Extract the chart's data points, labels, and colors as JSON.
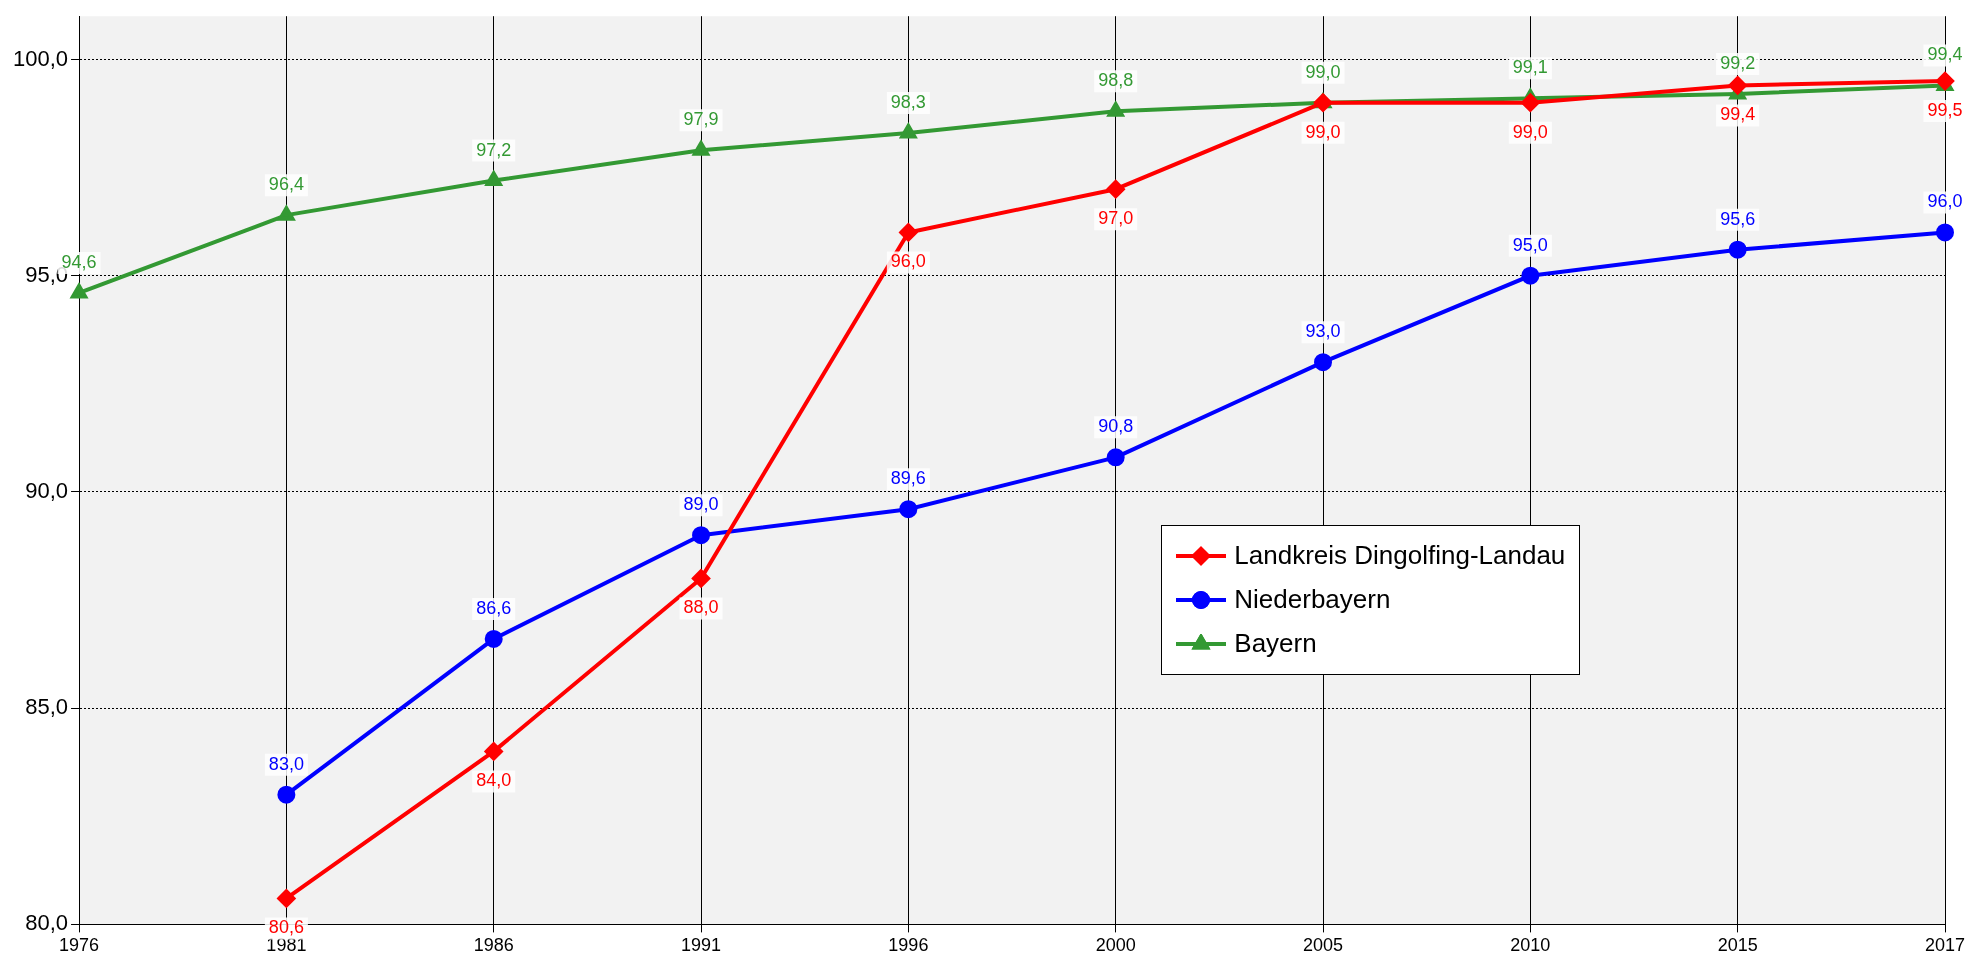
{
  "chart_data": {
    "type": "line",
    "categories": [
      "1976",
      "1981",
      "1986",
      "1991",
      "1996",
      "2000",
      "2005",
      "2010",
      "2015",
      "2017"
    ],
    "series": [
      {
        "name": "Landkreis Dingolfing-Landau",
        "color": "#ff0000",
        "marker": "diamond",
        "values": [
          null,
          80.6,
          84.0,
          88.0,
          96.0,
          97.0,
          99.0,
          99.0,
          99.4,
          99.5
        ],
        "value_labels": [
          null,
          "80,6",
          "84,0",
          "88,0",
          "96,0",
          "97,0",
          "99,0",
          "99,0",
          "99,4",
          "99,5"
        ]
      },
      {
        "name": "Niederbayern",
        "color": "#0000ff",
        "marker": "circle",
        "values": [
          null,
          83.0,
          86.6,
          89.0,
          89.6,
          90.8,
          93.0,
          95.0,
          95.6,
          96.0
        ],
        "value_labels": [
          null,
          "83,0",
          "86,6",
          "89,0",
          "89,6",
          "90,8",
          "93,0",
          "95,0",
          "95,6",
          "96,0"
        ]
      },
      {
        "name": "Bayern",
        "color": "#339933",
        "marker": "triangle",
        "values": [
          94.6,
          96.4,
          97.2,
          97.9,
          98.3,
          98.8,
          99.0,
          99.1,
          99.2,
          99.4
        ],
        "value_labels": [
          "94,6",
          "96,4",
          "97,2",
          "97,9",
          "98,3",
          "98,8",
          "99,0",
          "99,1",
          "99,2",
          "99,4"
        ]
      }
    ],
    "ylim": [
      80,
      101
    ],
    "yticks": [
      {
        "value": 80,
        "label": "80,0"
      },
      {
        "value": 85,
        "label": "85,0"
      },
      {
        "value": 90,
        "label": "90,0"
      },
      {
        "value": 95,
        "label": "95,0"
      },
      {
        "value": 100,
        "label": "100,0"
      }
    ],
    "grid": true,
    "legend": "right",
    "line_style": "solid"
  }
}
